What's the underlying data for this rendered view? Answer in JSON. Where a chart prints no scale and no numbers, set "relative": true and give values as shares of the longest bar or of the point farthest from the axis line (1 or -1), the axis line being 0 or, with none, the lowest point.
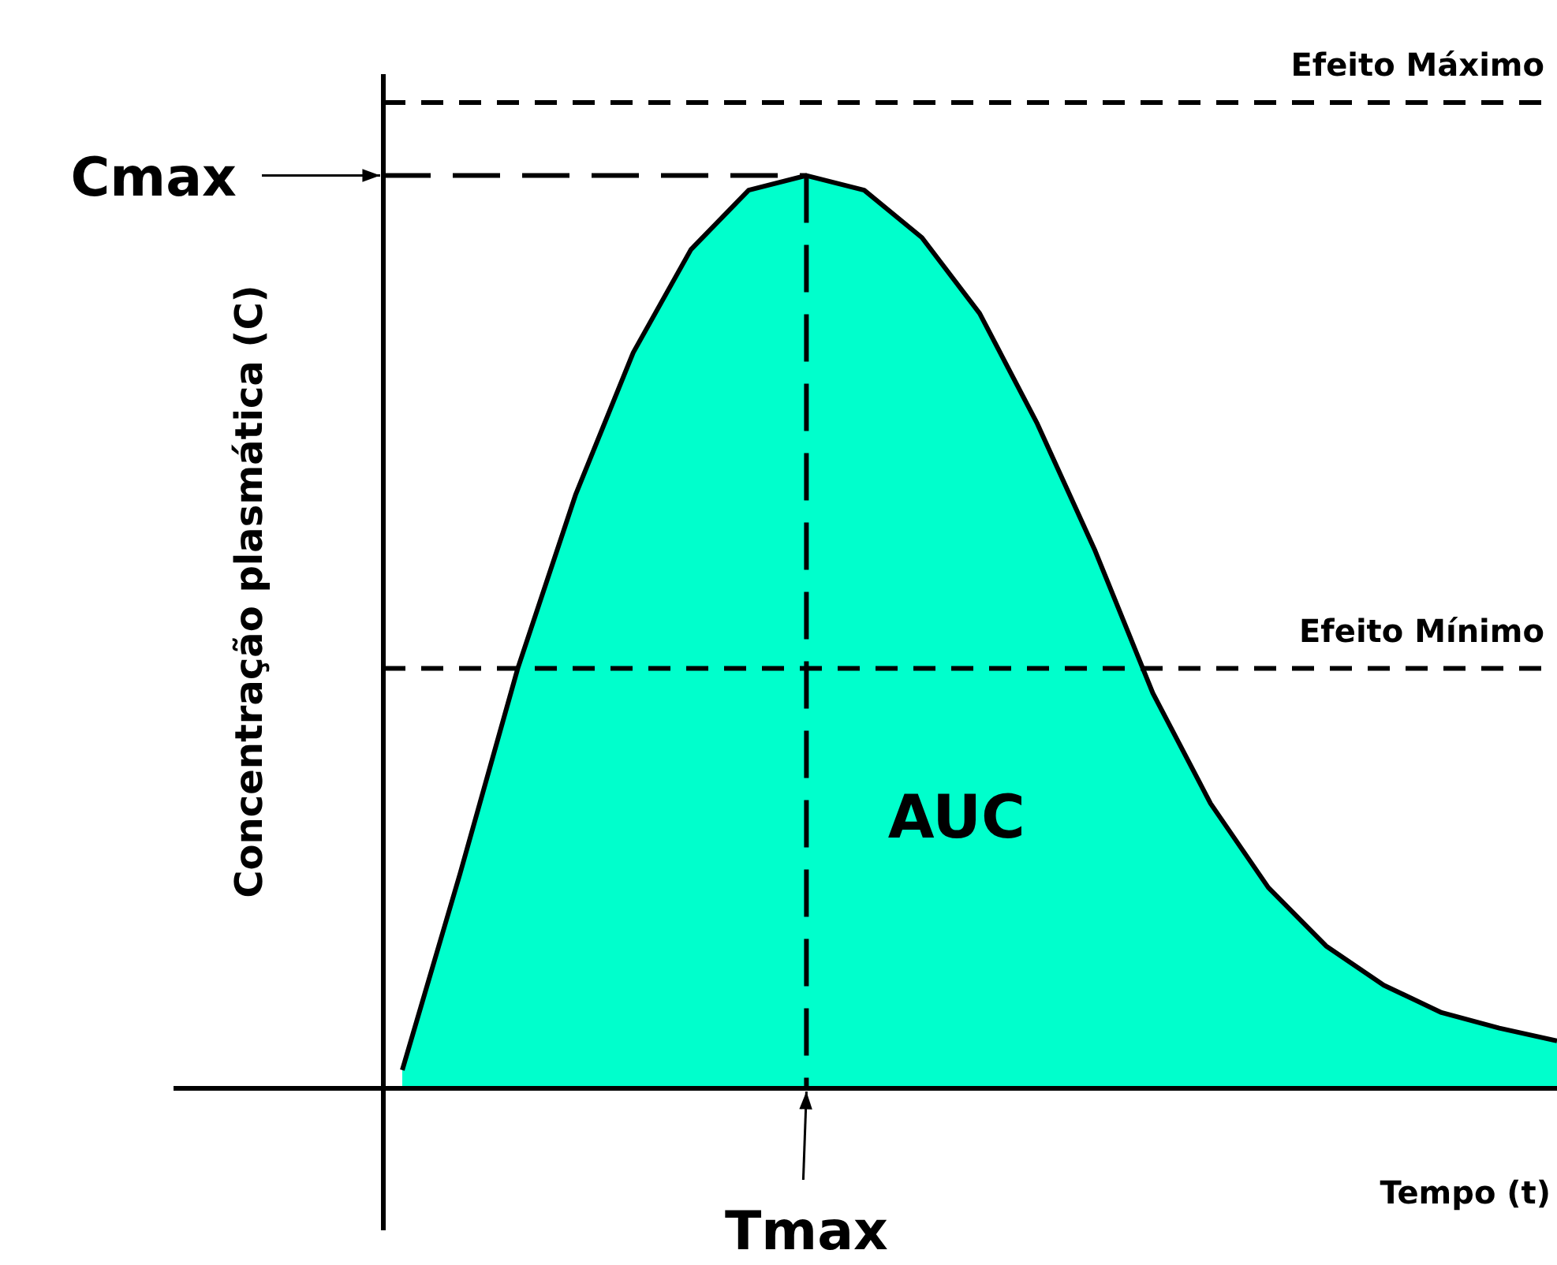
{
  "chart_data": {
    "type": "area",
    "relative": true,
    "xlabel": "Tempo (t)",
    "ylabel": "Concentração plasmática (C)",
    "marker": "none",
    "categories": [
      null,
      null,
      null,
      null,
      null,
      null,
      null,
      null,
      null,
      null,
      null,
      null,
      null,
      null,
      null,
      null,
      null,
      null,
      null,
      null,
      null
    ],
    "series": [
      {
        "color": "#00ffcc",
        "values": [
          0.02,
          0.235,
          0.46,
          0.65,
          0.806,
          0.919,
          0.984,
          1,
          0.984,
          0.932,
          0.849,
          0.728,
          0.589,
          0.433,
          0.312,
          0.22,
          0.156,
          0.113,
          0.083,
          0.066,
          0.052
        ]
      }
    ],
    "ref_lines": [
      {
        "axis": "y",
        "value": 1.08,
        "label": "Efeito Máximo",
        "line_style": "dashed"
      },
      {
        "axis": "y",
        "value": 0.46,
        "label": "Efeito Mínimo",
        "line_style": "dashed"
      }
    ],
    "annotations": [
      "Cmax",
      "Tmax",
      "AUC"
    ]
  }
}
